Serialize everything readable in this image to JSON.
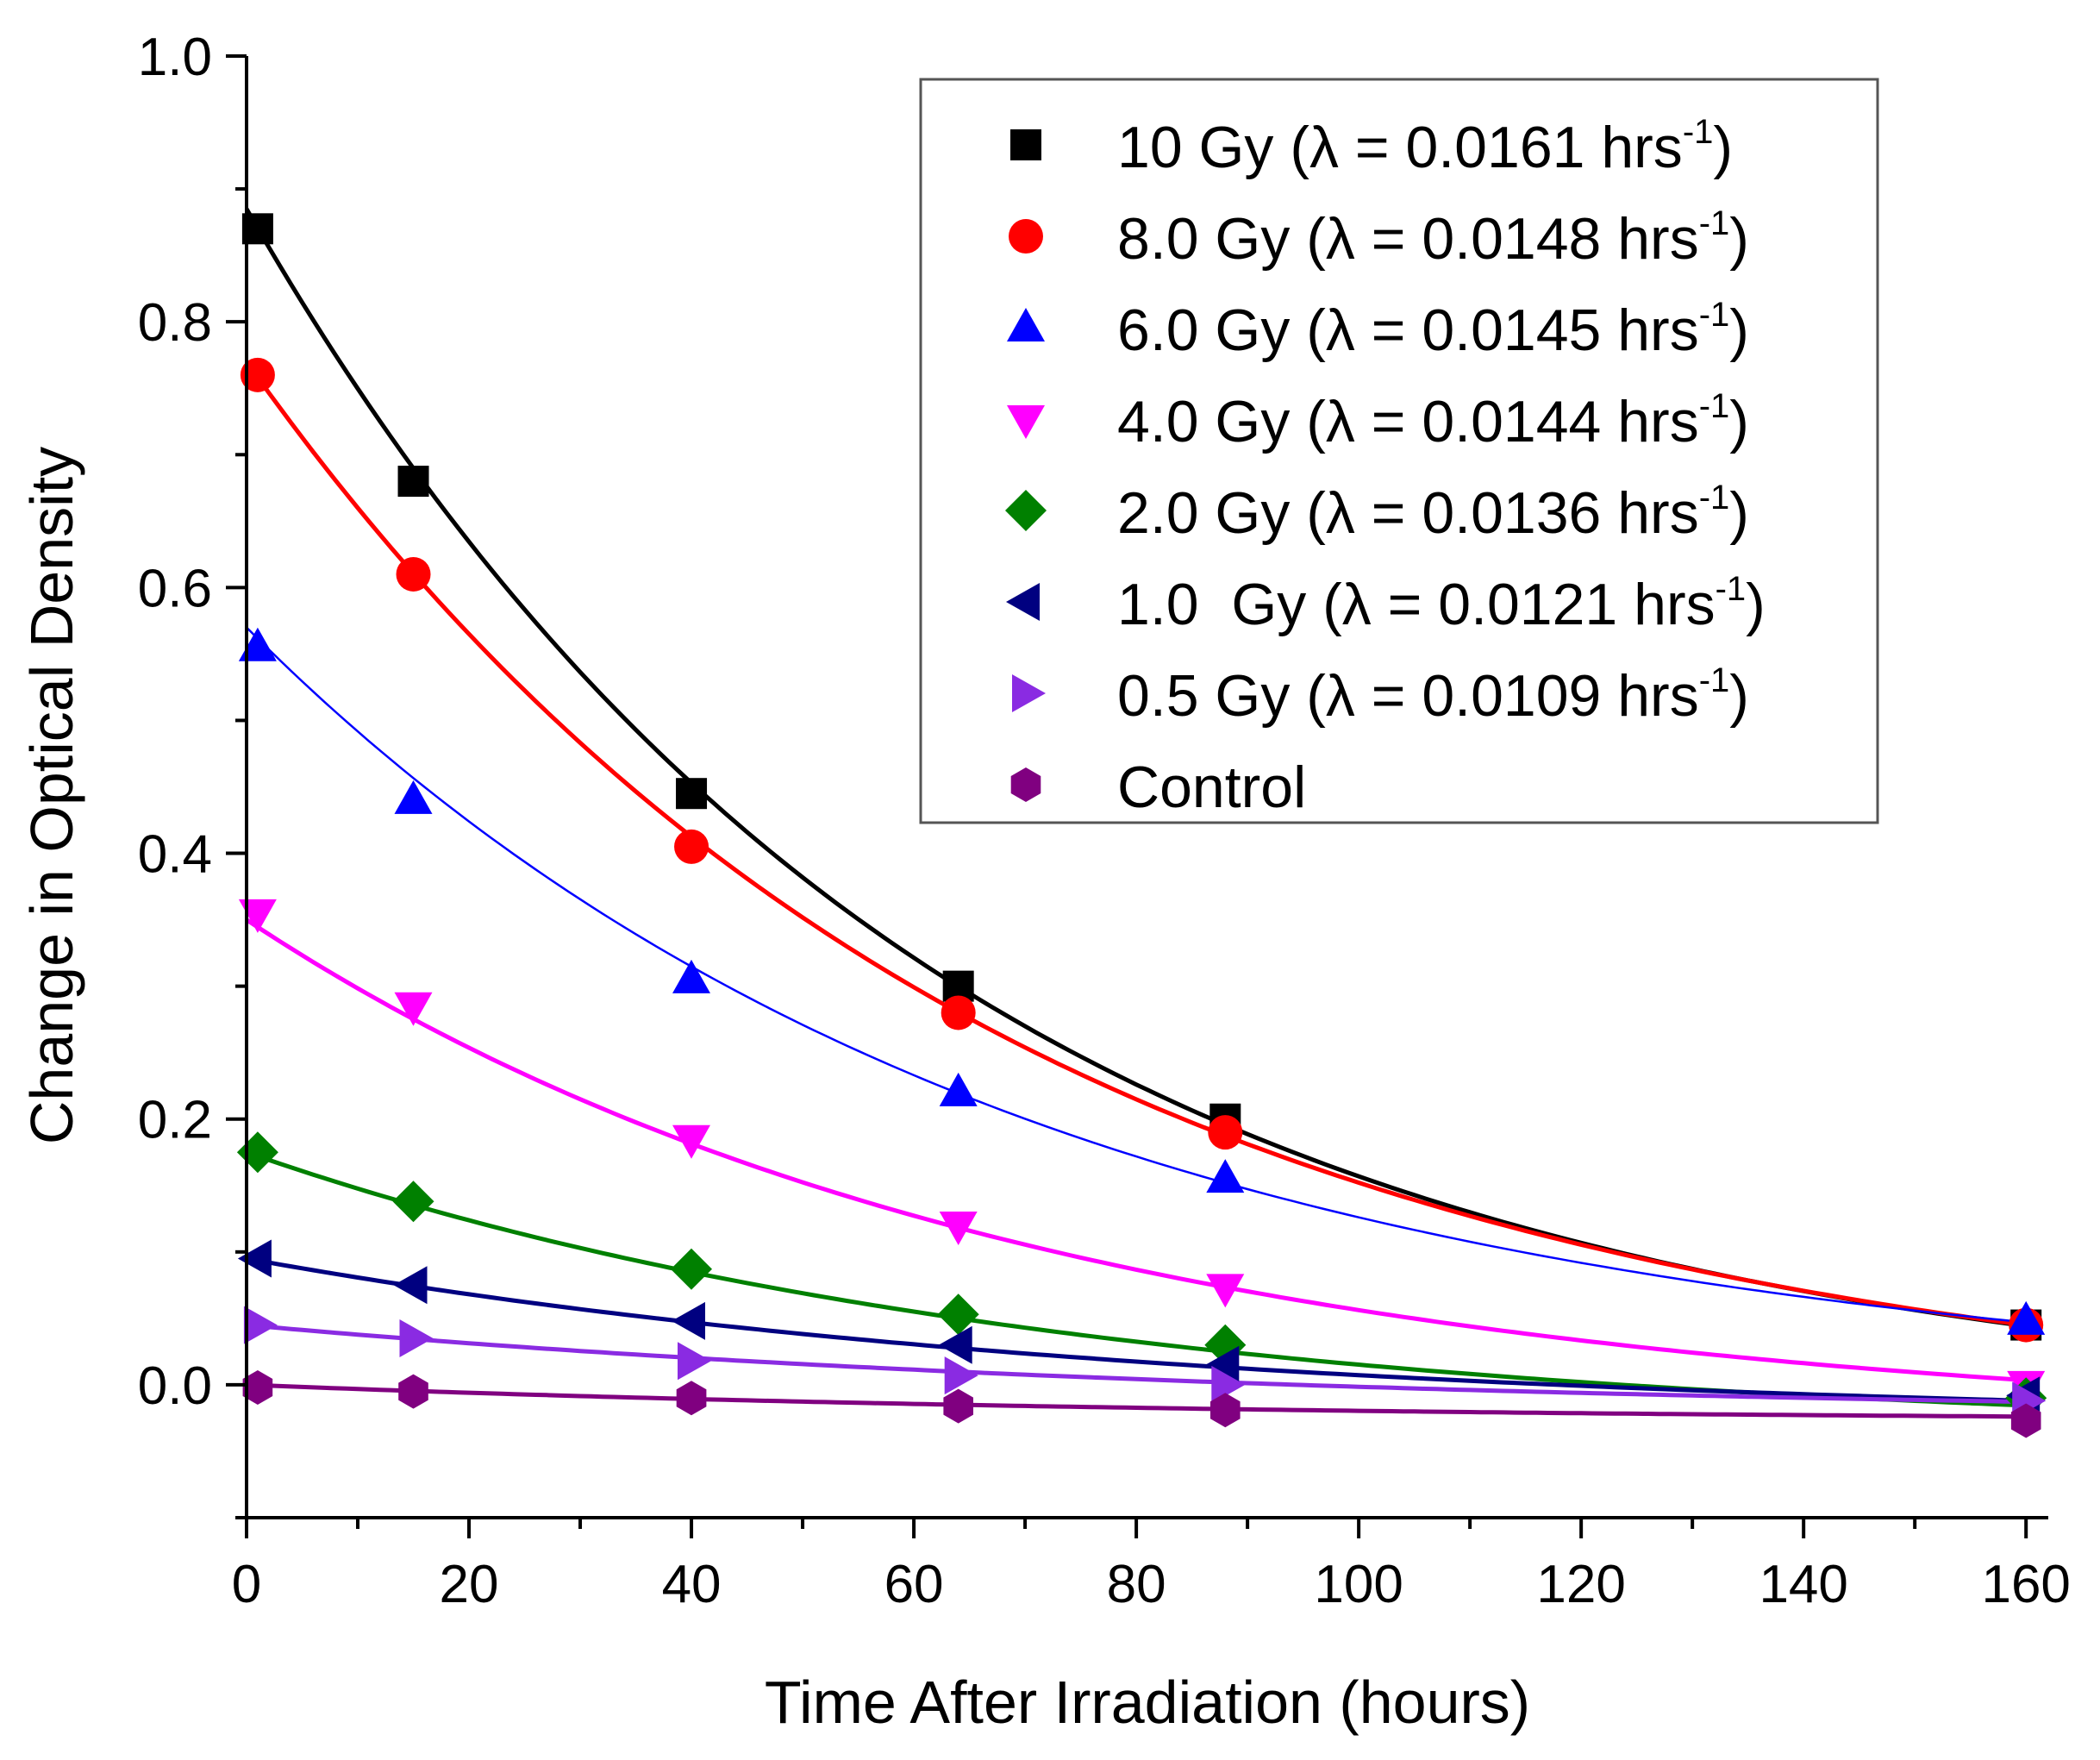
{
  "chart_data": {
    "type": "scatter",
    "xlabel": "Time After Irradiation (hours)",
    "ylabel": "Change in Optical Density",
    "xlim": [
      0,
      162
    ],
    "ylim": [
      -0.1,
      1.0
    ],
    "x_ticks": [
      0,
      20,
      40,
      60,
      80,
      100,
      120,
      140,
      160
    ],
    "x_tick_labels": [
      "0",
      "20",
      "40",
      "60",
      "80",
      "100",
      "120",
      "140",
      "160"
    ],
    "y_ticks": [
      0.0,
      0.2,
      0.4,
      0.6,
      0.8,
      1.0
    ],
    "y_tick_labels": [
      "0.0",
      "0.2",
      "0.4",
      "0.6",
      "0.8",
      "1.0"
    ],
    "legend_position": "top-right",
    "grid": false,
    "series": [
      {
        "name": "10 Gy",
        "dose_label": "10 Gy (",
        "lambda_text": "λ = 0.0161 hrs",
        "sup": "-1",
        "close": ")",
        "marker": "square",
        "color": "#000000",
        "line_width": 5,
        "fit": {
          "a": 0.91,
          "k": 0.0161,
          "c": -0.025
        },
        "x": [
          1,
          15,
          40,
          64,
          88,
          160
        ],
        "y": [
          0.87,
          0.68,
          0.445,
          0.3,
          0.2,
          0.045
        ]
      },
      {
        "name": "8.0 Gy",
        "dose_label": "8.0 Gy (",
        "lambda_text": "λ = 0.0148 hrs",
        "sup": "-1",
        "close": ")",
        "marker": "circle",
        "color": "#ff0000",
        "line_width": 5,
        "fit": {
          "a": 0.8,
          "k": 0.0148,
          "c": -0.03
        },
        "x": [
          1,
          15,
          40,
          64,
          88,
          160
        ],
        "y": [
          0.76,
          0.61,
          0.405,
          0.28,
          0.19,
          0.045
        ]
      },
      {
        "name": "6.0 Gy",
        "dose_label": "6.0 Gy (",
        "lambda_text": "λ = 0.0145 hrs",
        "sup": "-1",
        "close": ")",
        "marker": "triangle-up",
        "color": "#0000ff",
        "line_width": 2.5,
        "fit": {
          "a": 0.58,
          "k": 0.0145,
          "c": -0.01
        },
        "x": [
          1,
          15,
          40,
          64,
          88,
          160
        ],
        "y": [
          0.555,
          0.44,
          0.305,
          0.22,
          0.155,
          0.048
        ]
      },
      {
        "name": "4.0 Gy",
        "dose_label": "4.0 Gy (",
        "lambda_text": "λ = 0.0144 hrs",
        "sup": "-1",
        "close": ")",
        "marker": "triangle-down",
        "color": "#ff00ff",
        "line_width": 5,
        "fit": {
          "a": 0.385,
          "k": 0.0144,
          "c": -0.035
        },
        "x": [
          1,
          15,
          40,
          64,
          88,
          160
        ],
        "y": [
          0.355,
          0.285,
          0.185,
          0.12,
          0.073,
          0.0
        ]
      },
      {
        "name": "2.0 Gy",
        "dose_label": "2.0 Gy (",
        "lambda_text": "λ = 0.0136 hrs",
        "sup": "-1",
        "close": ")",
        "marker": "diamond",
        "color": "#008000",
        "line_width": 5,
        "fit": {
          "a": 0.215,
          "k": 0.0136,
          "c": -0.04
        },
        "x": [
          1,
          15,
          40,
          64,
          88,
          160
        ],
        "y": [
          0.175,
          0.138,
          0.087,
          0.053,
          0.03,
          -0.01
        ]
      },
      {
        "name": "1.0 Gy",
        "dose_label": "1.0  Gy (",
        "lambda_text": "λ = 0.0121 hrs",
        "sup": "-1",
        "close": ")",
        "marker": "triangle-left",
        "color": "#000080",
        "line_width": 5,
        "fit": {
          "a": 0.125,
          "k": 0.0121,
          "c": -0.03
        },
        "x": [
          1,
          15,
          40,
          64,
          88,
          160
        ],
        "y": [
          0.095,
          0.075,
          0.048,
          0.03,
          0.015,
          -0.008
        ]
      },
      {
        "name": "0.5 Gy",
        "dose_label": "0.5 Gy (",
        "lambda_text": "λ = 0.0109 hrs",
        "sup": "-1",
        "close": ")",
        "marker": "triangle-right",
        "color": "#8a2be2",
        "line_width": 5,
        "fit": {
          "a": 0.07,
          "k": 0.0109,
          "c": -0.025
        },
        "x": [
          1,
          15,
          40,
          64,
          88,
          160
        ],
        "y": [
          0.045,
          0.035,
          0.018,
          0.007,
          0.0,
          -0.012
        ]
      },
      {
        "name": "Control",
        "dose_label": "Control",
        "lambda_text": "",
        "sup": "",
        "close": "",
        "marker": "hexagon",
        "color": "#800080",
        "line_width": 5,
        "fit": {
          "a": 0.028,
          "k": 0.012,
          "c": -0.028
        },
        "x": [
          1,
          15,
          40,
          64,
          88,
          160
        ],
        "y": [
          -0.002,
          -0.005,
          -0.01,
          -0.016,
          -0.019,
          -0.027
        ]
      }
    ]
  }
}
